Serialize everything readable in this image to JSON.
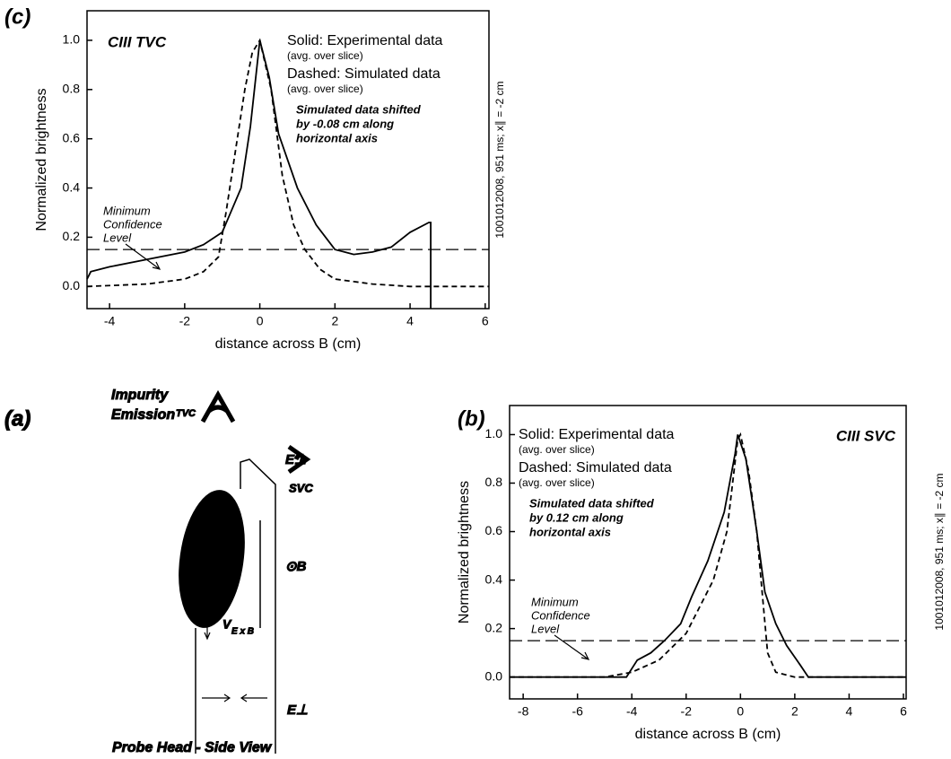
{
  "chart_data": [
    {
      "type": "line",
      "panel_label": "(c)",
      "title": "CIII TVC",
      "xlabel": "distance across B (cm)",
      "ylabel": "Normalized brightness",
      "side_note": "1001012008, 951 ms; x∥ = -2 cm",
      "xlim": [
        -4.6,
        6.1
      ],
      "ylim": [
        -0.09,
        1.12
      ],
      "xticks": [
        -4,
        -2,
        0,
        2,
        4,
        6
      ],
      "yticks": [
        {
          "value": 0,
          "label": "0.0"
        },
        0.2,
        0.4,
        0.6,
        0.8,
        {
          "value": 1,
          "label": "1.0"
        }
      ],
      "threshold": 0.15,
      "annotations": [
        "(avg. over slice)",
        "(avg. over slice)",
        "Simulated data shifted",
        "by -0.08 cm along",
        "horizontal axis",
        "Minimum",
        "Confidence",
        "Level"
      ],
      "series": [
        {
          "name": "Solid: Experimental data",
          "color": "#000",
          "style": "solid",
          "x": [
            -4.6,
            -4.5,
            -4,
            -3,
            -2,
            -1.5,
            -1,
            -0.5,
            -0.25,
            0,
            0.25,
            0.5,
            1,
            1.5,
            2,
            2.5,
            3,
            3.5,
            4,
            4.5,
            4.55,
            4.55
          ],
          "values": [
            0.03,
            0.06,
            0.08,
            0.11,
            0.14,
            0.17,
            0.22,
            0.4,
            0.65,
            1.0,
            0.85,
            0.62,
            0.4,
            0.25,
            0.15,
            0.13,
            0.14,
            0.16,
            0.22,
            0.26,
            0.26,
            -0.09
          ]
        },
        {
          "name": "Dashed: Simulated data",
          "color": "#000",
          "style": "dashed",
          "x": [
            -4.6,
            -3,
            -2,
            -1.5,
            -1.1,
            -0.9,
            -0.7,
            -0.4,
            -0.2,
            0,
            0.3,
            0.6,
            0.9,
            1.2,
            1.6,
            2,
            3,
            4,
            6.1
          ],
          "values": [
            0.0,
            0.01,
            0.03,
            0.06,
            0.12,
            0.3,
            0.5,
            0.8,
            0.95,
            1.0,
            0.8,
            0.45,
            0.25,
            0.15,
            0.07,
            0.03,
            0.01,
            0.0,
            0.0
          ]
        }
      ]
    },
    {
      "type": "line",
      "panel_label": "(b)",
      "title": "CIII SVC",
      "xlabel": "distance across B (cm)",
      "ylabel": "Normalized brightness",
      "side_note": "1001012008, 951 ms; x∥ = -2 cm",
      "xlim": [
        -8.5,
        6.1
      ],
      "ylim": [
        -0.09,
        1.12
      ],
      "xticks": [
        -8,
        -6,
        -4,
        -2,
        0,
        2,
        4,
        6
      ],
      "yticks": [
        {
          "value": 0,
          "label": "0.0"
        },
        0.2,
        0.4,
        0.6,
        0.8,
        {
          "value": 1,
          "label": "1.0"
        }
      ],
      "threshold": 0.15,
      "annotations": [
        "(avg. over slice)",
        "(avg. over slice)",
        "Simulated data shifted",
        "by 0.12 cm along",
        "horizontal axis",
        "Minimum",
        "Confidence",
        "Level"
      ],
      "series": [
        {
          "name": "Solid: Experimental data",
          "color": "#000",
          "style": "solid",
          "x": [
            -8.5,
            -4.2,
            -3.8,
            -3.3,
            -2.8,
            -2.2,
            -1.8,
            -1.2,
            -0.6,
            -0.2,
            -0.1,
            0.2,
            0.6,
            0.9,
            1.3,
            1.7,
            2.2,
            2.5,
            6.1
          ],
          "values": [
            0,
            0,
            0.07,
            0.1,
            0.15,
            0.22,
            0.33,
            0.48,
            0.68,
            0.92,
            1.0,
            0.9,
            0.6,
            0.35,
            0.22,
            0.13,
            0.05,
            0,
            0
          ]
        },
        {
          "name": "Dashed: Simulated data",
          "color": "#000",
          "style": "dashed",
          "x": [
            -8.5,
            -5,
            -4,
            -3,
            -2,
            -1,
            -0.5,
            -0.1,
            0,
            0.3,
            0.6,
            0.8,
            1.0,
            1.3,
            2,
            6.1
          ],
          "values": [
            0,
            0,
            0.02,
            0.07,
            0.18,
            0.4,
            0.6,
            0.98,
            1.0,
            0.85,
            0.6,
            0.35,
            0.1,
            0.02,
            0,
            0
          ]
        }
      ]
    }
  ],
  "diagram": {
    "panel_label": "(a)",
    "viewer_top": "TVC",
    "viewer_side": "SVC",
    "emission": [
      "Impurity",
      "Emission"
    ],
    "field_top": "E⊥",
    "field_bottom": "E⊥",
    "b_field": "⊙B",
    "drift": "V",
    "drift_sub": "E x B",
    "caption": "Probe Head - Side View"
  }
}
